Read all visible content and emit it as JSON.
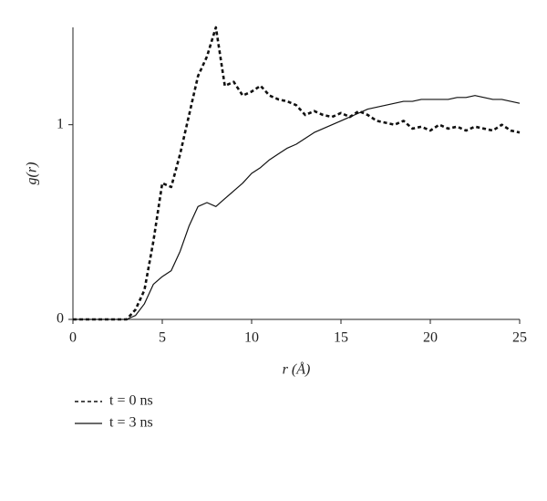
{
  "chart_data": {
    "type": "line",
    "xlabel": "r (Å)",
    "ylabel": "g(r)",
    "x": [
      0,
      0.5,
      1,
      1.5,
      2,
      2.5,
      3,
      3.5,
      4,
      4.5,
      5,
      5.5,
      6,
      6.5,
      7,
      7.5,
      8,
      8.5,
      9,
      9.5,
      10,
      10.5,
      11,
      11.5,
      12,
      12.5,
      13,
      13.5,
      14,
      14.5,
      15,
      15.5,
      16,
      16.5,
      17,
      17.5,
      18,
      18.5,
      19,
      19.5,
      20,
      20.5,
      21,
      21.5,
      22,
      22.5,
      23,
      23.5,
      24,
      24.5,
      25
    ],
    "series": [
      {
        "name": "t = 0 ns",
        "color": "#111111",
        "style": "dashed",
        "values": [
          0,
          0,
          0,
          0,
          0,
          0,
          0,
          0.05,
          0.15,
          0.4,
          0.7,
          0.68,
          0.85,
          1.05,
          1.25,
          1.35,
          1.5,
          1.2,
          1.22,
          1.15,
          1.17,
          1.2,
          1.15,
          1.13,
          1.12,
          1.1,
          1.05,
          1.07,
          1.05,
          1.04,
          1.06,
          1.04,
          1.07,
          1.05,
          1.02,
          1.01,
          1.0,
          1.02,
          0.98,
          0.99,
          0.97,
          1.0,
          0.98,
          0.99,
          0.97,
          0.99,
          0.98,
          0.97,
          1.0,
          0.97,
          0.96
        ]
      },
      {
        "name": "t = 3 ns",
        "color": "#111111",
        "style": "solid",
        "values": [
          0,
          0,
          0,
          0,
          0,
          0,
          0,
          0.02,
          0.08,
          0.18,
          0.22,
          0.25,
          0.35,
          0.48,
          0.58,
          0.6,
          0.58,
          0.62,
          0.66,
          0.7,
          0.75,
          0.78,
          0.82,
          0.85,
          0.88,
          0.9,
          0.93,
          0.96,
          0.98,
          1.0,
          1.02,
          1.04,
          1.06,
          1.08,
          1.09,
          1.1,
          1.11,
          1.12,
          1.12,
          1.13,
          1.13,
          1.13,
          1.13,
          1.14,
          1.14,
          1.15,
          1.14,
          1.13,
          1.13,
          1.12,
          1.11
        ]
      }
    ],
    "xlim": [
      0,
      25
    ],
    "ylim": [
      0,
      1.5
    ],
    "xticks": [
      0,
      5,
      10,
      15,
      20,
      25
    ],
    "yticks": [
      0,
      1
    ],
    "grid": false,
    "legend": "bottom-left"
  }
}
